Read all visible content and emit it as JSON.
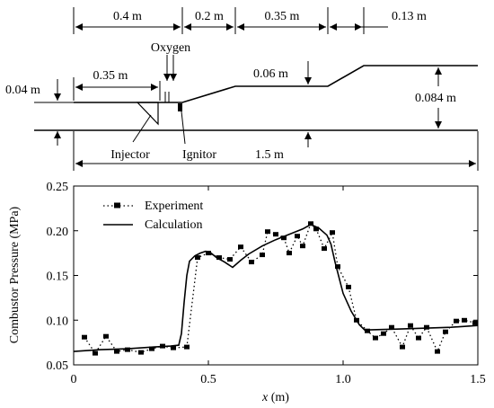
{
  "geometry": {
    "dims": [
      "0.4 m",
      "0.2 m",
      "0.35 m",
      "0.13 m",
      "0.35 m",
      "0.06 m",
      "0.04 m",
      "0.084 m",
      "1.5 m"
    ],
    "oxygen": "Oxygen",
    "injector": "Injector",
    "ignitor": "Ignitor"
  },
  "chart_data": {
    "type": "line",
    "xlabel_var": "x",
    "xlabel_unit": " (m)",
    "ylabel": "Combustor Pressure (MPa)",
    "xlim": [
      0,
      1.5
    ],
    "ylim": [
      0.05,
      0.25
    ],
    "xticks": [
      0,
      0.5,
      1.0,
      1.5
    ],
    "xtick_labels": [
      "0",
      "0.5",
      "1.0",
      "1.5"
    ],
    "yticks": [
      0.05,
      0.1,
      0.15,
      0.2,
      0.25
    ],
    "ytick_labels": [
      "0.05",
      "0.10",
      "0.15",
      "0.20",
      "0.25"
    ],
    "legend_position": "top-left",
    "series": [
      {
        "name": "Experiment",
        "style": "dotted-with-squares",
        "x": [
          0.04,
          0.08,
          0.12,
          0.16,
          0.2,
          0.25,
          0.29,
          0.33,
          0.37,
          0.42,
          0.46,
          0.5,
          0.54,
          0.58,
          0.62,
          0.66,
          0.7,
          0.72,
          0.75,
          0.78,
          0.8,
          0.83,
          0.85,
          0.88,
          0.9,
          0.93,
          0.96,
          0.98,
          1.02,
          1.05,
          1.09,
          1.12,
          1.15,
          1.18,
          1.22,
          1.25,
          1.28,
          1.31,
          1.35,
          1.38,
          1.42,
          1.45,
          1.49
        ],
        "y": [
          0.081,
          0.063,
          0.082,
          0.065,
          0.067,
          0.064,
          0.068,
          0.071,
          0.069,
          0.07,
          0.17,
          0.175,
          0.17,
          0.168,
          0.182,
          0.165,
          0.173,
          0.199,
          0.196,
          0.192,
          0.175,
          0.194,
          0.183,
          0.208,
          0.202,
          0.18,
          0.198,
          0.16,
          0.137,
          0.1,
          0.088,
          0.08,
          0.085,
          0.092,
          0.07,
          0.094,
          0.08,
          0.092,
          0.065,
          0.087,
          0.099,
          0.1,
          0.097
        ]
      },
      {
        "name": "Calculation",
        "style": "solid",
        "x": [
          0.0,
          0.1,
          0.2,
          0.3,
          0.36,
          0.39,
          0.4,
          0.41,
          0.42,
          0.43,
          0.45,
          0.47,
          0.49,
          0.51,
          0.53,
          0.56,
          0.59,
          0.62,
          0.65,
          0.7,
          0.75,
          0.8,
          0.85,
          0.88,
          0.91,
          0.94,
          0.955,
          0.97,
          1.0,
          1.03,
          1.06,
          1.08,
          1.2,
          1.3,
          1.4,
          1.5
        ],
        "y": [
          0.065,
          0.067,
          0.068,
          0.07,
          0.071,
          0.072,
          0.085,
          0.12,
          0.15,
          0.166,
          0.172,
          0.175,
          0.177,
          0.175,
          0.17,
          0.165,
          0.159,
          0.167,
          0.174,
          0.183,
          0.19,
          0.196,
          0.202,
          0.207,
          0.203,
          0.195,
          0.185,
          0.165,
          0.13,
          0.11,
          0.095,
          0.089,
          0.09,
          0.091,
          0.092,
          0.094
        ]
      }
    ]
  }
}
